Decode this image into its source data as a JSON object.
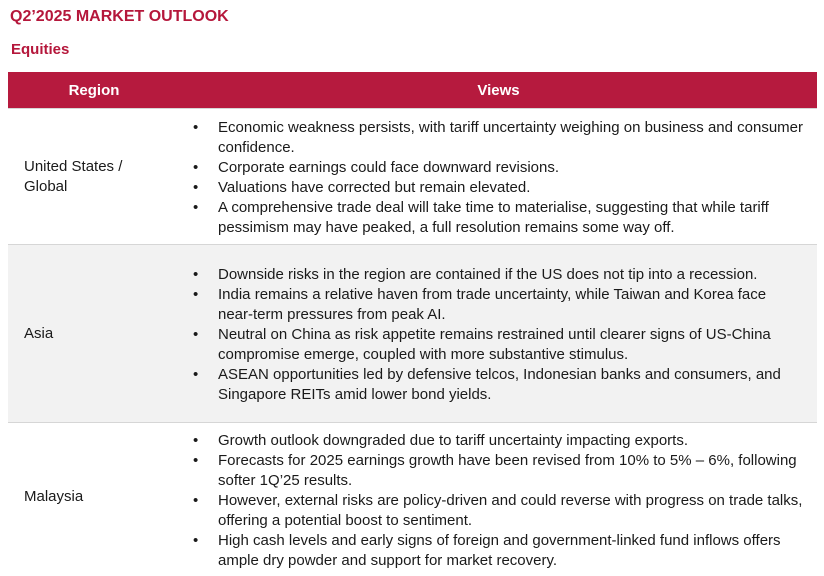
{
  "header": {
    "title": "Q2’2025 MARKET OUTLOOK",
    "section": "Equities"
  },
  "table": {
    "columns": [
      "Region",
      "Views"
    ],
    "rows": [
      {
        "region": "United States / Global",
        "views": [
          "Economic weakness persists, with tariff uncertainty weighing on business and consumer confidence.",
          "Corporate earnings could face downward revisions.",
          "Valuations have corrected but remain elevated.",
          "A comprehensive trade deal will take time to materialise, suggesting that while tariff pessimism may have peaked, a full resolution remains some way off."
        ]
      },
      {
        "region": "Asia",
        "views": [
          "Downside risks in the region are contained if the US does not tip into a recession.",
          "India remains a relative haven from trade uncertainty, while Taiwan and Korea face near-term pressures from peak AI.",
          "Neutral on China as risk appetite remains restrained until clearer signs of US-China compromise emerge, coupled with more substantive stimulus.",
          "ASEAN opportunities led by defensive telcos, Indonesian banks and consumers, and Singapore REITs amid lower bond yields."
        ]
      },
      {
        "region": "Malaysia",
        "views": [
          "Growth outlook downgraded due to tariff uncertainty impacting exports.",
          "Forecasts for 2025 earnings growth have been revised from 10% to 5% – 6%, following softer 1Q’25 results.",
          "However, external risks are policy-driven and could reverse with progress on trade talks, offering a potential boost to sentiment.",
          "High cash levels and early signs of foreign and government-linked fund inflows offers ample dry powder and support for market recovery."
        ]
      }
    ]
  },
  "colors": {
    "accent": "#b5173b",
    "header_bg": "#b61a3e",
    "shaded_row": "#f2f2f2"
  }
}
